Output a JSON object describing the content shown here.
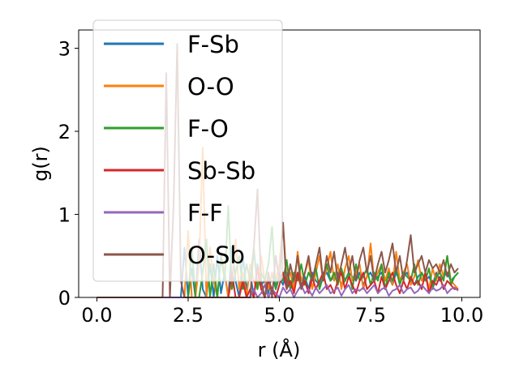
{
  "chart_data": {
    "type": "line",
    "title": "",
    "xlabel": "r (Å)",
    "ylabel": "g(r)",
    "xlim": [
      -0.5,
      10.5
    ],
    "ylim": [
      0,
      3.22
    ],
    "xticks": [
      0.0,
      2.5,
      5.0,
      7.5,
      10.0
    ],
    "xtick_labels": [
      "0.0",
      "2.5",
      "5.0",
      "7.5",
      "10.0"
    ],
    "yticks": [
      0,
      1,
      2,
      3
    ],
    "ytick_labels": [
      "0",
      "1",
      "2",
      "3"
    ],
    "legend_position": "upper-left",
    "x": [
      0.0,
      0.3,
      0.6,
      0.9,
      1.2,
      1.5,
      1.8,
      1.9,
      2.0,
      2.1,
      2.2,
      2.3,
      2.4,
      2.5,
      2.6,
      2.7,
      2.8,
      2.9,
      3.0,
      3.1,
      3.2,
      3.3,
      3.4,
      3.5,
      3.6,
      3.7,
      3.8,
      3.9,
      4.0,
      4.1,
      4.2,
      4.3,
      4.4,
      4.5,
      4.6,
      4.7,
      4.8,
      4.9,
      5.0,
      5.1,
      5.2,
      5.3,
      5.4,
      5.5,
      5.6,
      5.7,
      5.8,
      5.9,
      6.0,
      6.1,
      6.2,
      6.3,
      6.4,
      6.5,
      6.6,
      6.7,
      6.8,
      6.9,
      7.0,
      7.1,
      7.2,
      7.3,
      7.4,
      7.5,
      7.6,
      7.7,
      7.8,
      7.9,
      8.0,
      8.1,
      8.2,
      8.3,
      8.4,
      8.5,
      8.6,
      8.7,
      8.8,
      8.9,
      9.0,
      9.1,
      9.2,
      9.3,
      9.4,
      9.5,
      9.6,
      9.7,
      9.8,
      9.9
    ],
    "series": [
      {
        "name": "F-Sb",
        "color": "#1f77b4",
        "values": [
          0,
          0,
          0,
          0,
          0,
          0,
          0,
          0,
          0,
          0,
          0,
          0,
          0.6,
          0,
          0.35,
          0,
          0.7,
          0.1,
          0,
          0.4,
          0,
          0.5,
          0.05,
          0.3,
          0,
          0.6,
          0.2,
          0,
          0.5,
          0.1,
          0.3,
          0,
          0.4,
          0.15,
          0.2,
          0.05,
          0.3,
          0.1,
          0.25,
          0.15,
          0.3,
          0.1,
          0.2,
          0.3,
          0.15,
          0.25,
          0.1,
          0.3,
          0.2,
          0.15,
          0.25,
          0.3,
          0.2,
          0.25,
          0.3,
          0.15,
          0.2,
          0.3,
          0.25,
          0.2,
          0.3,
          0.15,
          0.25,
          0.3,
          0.2,
          0.25,
          0.3,
          0.2,
          0.25,
          0.15,
          0.3,
          0.2,
          0.25,
          0.3,
          0.2,
          0.15,
          0.25,
          0.3,
          0.2,
          0.25,
          0.15,
          0.3,
          0.2,
          0.25,
          0.3,
          0.2,
          0.25,
          0.3
        ]
      },
      {
        "name": "O-O",
        "color": "#ff7f0e",
        "values": [
          0,
          0,
          0,
          0,
          0,
          0,
          0,
          0,
          0,
          0,
          0,
          0,
          0,
          0.8,
          0,
          0,
          0.4,
          1.8,
          0,
          0.6,
          0.2,
          0,
          0.5,
          0.3,
          0,
          0.2,
          0.7,
          0.1,
          0.3,
          0,
          0.4,
          0.2,
          0.1,
          0.5,
          0.2,
          0.1,
          0.3,
          0.2,
          0.4,
          0.9,
          0.2,
          0.3,
          0.1,
          0.55,
          0.2,
          0.3,
          0.45,
          0.1,
          0.3,
          0.5,
          0.2,
          0.35,
          0.55,
          0.2,
          0.4,
          0.1,
          0.35,
          0.5,
          0.2,
          0.3,
          0.4,
          0.1,
          0.25,
          0.65,
          0.2,
          0.3,
          0.4,
          0.2,
          0.35,
          0.15,
          0.55,
          0.2,
          0.3,
          0.4,
          0.15,
          0.25,
          0.45,
          0.2,
          0.3,
          0.1,
          0.35,
          0.2,
          0.4,
          0.25,
          0.5,
          0.2,
          0.15,
          0.1
        ]
      },
      {
        "name": "F-O",
        "color": "#2ca02c",
        "values": [
          0,
          0,
          0,
          0,
          0,
          0,
          0,
          0,
          0,
          0,
          0,
          0,
          0,
          0,
          0.6,
          0,
          0,
          0.3,
          0.7,
          0,
          0.4,
          0,
          0.5,
          0.2,
          1.1,
          0.1,
          0.3,
          0.5,
          0.1,
          0.4,
          0.2,
          0.6,
          0.1,
          0.3,
          0.2,
          0.4,
          0.85,
          0.1,
          0.3,
          0.2,
          0.45,
          0.1,
          0.3,
          0.2,
          0.4,
          0.15,
          0.3,
          0.2,
          0.35,
          0.1,
          0.25,
          0.4,
          0.2,
          0.3,
          0.15,
          0.35,
          0.2,
          0.3,
          0.1,
          0.4,
          0.2,
          0.25,
          0.35,
          0.15,
          0.3,
          0.2,
          0.4,
          0.1,
          0.3,
          0.2,
          0.35,
          0.15,
          0.3,
          0.25,
          0.2,
          0.4,
          0.15,
          0.3,
          0.2,
          0.35,
          0.1,
          0.25,
          0.3,
          0.2,
          0.5,
          0.15,
          0.25,
          0.3
        ]
      },
      {
        "name": "Sb-Sb",
        "color": "#d62728",
        "values": [
          0,
          0,
          0,
          0,
          0,
          0,
          0,
          0,
          0,
          0,
          0,
          0,
          0,
          0,
          0,
          0,
          0,
          0,
          0,
          0,
          0,
          0,
          0,
          0,
          0,
          0.3,
          0,
          0,
          0.2,
          0,
          0.1,
          0,
          0.35,
          0.1,
          0,
          0.2,
          0.1,
          0,
          0.15,
          0.3,
          0.1,
          0.2,
          0.05,
          0.3,
          0.1,
          0.2,
          0.05,
          0.25,
          0.1,
          0.2,
          0.3,
          0.1,
          0.15,
          0.05,
          0.2,
          0.3,
          0.1,
          0.25,
          0.15,
          0.05,
          0.2,
          0.3,
          0.1,
          0.15,
          0.2,
          0.05,
          0.25,
          0.1,
          0.2,
          0.3,
          0.15,
          0.05,
          0.2,
          0.1,
          0.25,
          0.15,
          0.2,
          0.1,
          0.3,
          0.05,
          0.2,
          0.15,
          0.25,
          0.1,
          0.2,
          0.15,
          0.1,
          0.1
        ]
      },
      {
        "name": "F-F",
        "color": "#9467bd",
        "values": [
          0,
          0,
          0,
          0,
          0,
          0,
          0,
          0,
          0,
          0,
          0,
          0,
          0,
          0,
          0,
          0,
          0,
          0,
          0,
          0,
          0,
          0,
          0,
          0,
          0,
          0,
          0,
          0,
          0,
          0,
          0,
          0.1,
          0,
          0.05,
          0.15,
          0,
          0.1,
          0.05,
          0,
          0.12,
          0.05,
          0.1,
          0,
          0.08,
          0.15,
          0.05,
          0.1,
          0.02,
          0.12,
          0.05,
          0.1,
          0.15,
          0.05,
          0.08,
          0.12,
          0.02,
          0.1,
          0.15,
          0.05,
          0.1,
          0.08,
          0.12,
          0.05,
          0.1,
          0.15,
          0.05,
          0.1,
          0.12,
          0.02,
          0.08,
          0.1,
          0.15,
          0.05,
          0.1,
          0.12,
          0.05,
          0.08,
          0.15,
          0.1,
          0.05,
          0.12,
          0.08,
          0.1,
          0.15,
          0.05,
          0.1,
          0.12,
          0.08
        ]
      },
      {
        "name": "O-Sb",
        "color": "#8c564b",
        "values": [
          0,
          0,
          0,
          0,
          0,
          0,
          0,
          2.7,
          0,
          1.1,
          3.05,
          0.2,
          0,
          0,
          0,
          0,
          0,
          0,
          0,
          0,
          0,
          0,
          0,
          0,
          0,
          0,
          0,
          0,
          0,
          0,
          0,
          0.6,
          1.3,
          0.2,
          0,
          0.3,
          0,
          0.5,
          0.2,
          0.9,
          0.1,
          0.4,
          0.2,
          0.5,
          0.1,
          0.3,
          0.5,
          0.2,
          0.4,
          0.6,
          0.2,
          0.5,
          0.3,
          0.55,
          0.2,
          0.4,
          0.6,
          0.3,
          0.5,
          0.2,
          0.45,
          0.6,
          0.3,
          0.5,
          0.2,
          0.4,
          0.55,
          0.3,
          0.45,
          0.65,
          0.3,
          0.5,
          0.2,
          0.45,
          0.75,
          0.3,
          0.4,
          0.5,
          0.3,
          0.45,
          0.35,
          0.4,
          0.3,
          0.45,
          0.25,
          0.4,
          0.3,
          0.35
        ]
      }
    ]
  }
}
